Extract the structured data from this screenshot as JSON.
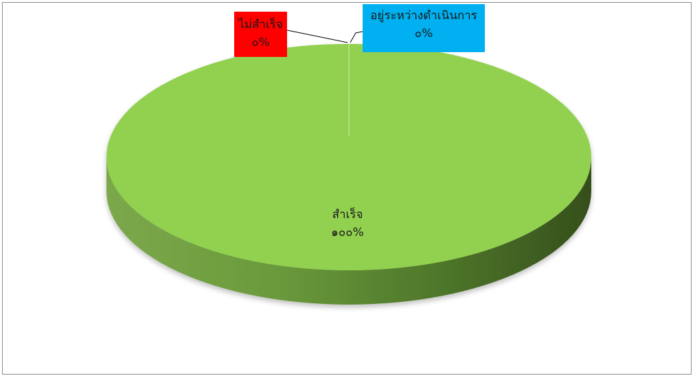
{
  "chart_data": {
    "type": "pie",
    "style": "3d",
    "categories": [
      "สำเร็จ",
      "ไม่สำเร็จ",
      "อยู่ระหว่างดำเนินการ"
    ],
    "values": [
      100,
      0,
      0
    ],
    "value_labels": [
      "๑๐๐%",
      "๐%",
      "๐%"
    ],
    "colors": [
      "#92d050",
      "#ff0000",
      "#00b0f0"
    ],
    "legend": "none",
    "title": ""
  },
  "labels": {
    "success": {
      "name": "สำเร็จ",
      "value": "๑๐๐%",
      "fill": "#92d050"
    },
    "fail": {
      "name": "ไม่สำเร็จ",
      "value": "๐%",
      "fill": "#ff0000"
    },
    "progress": {
      "name": "อยู่ระหว่างดำเนินการ",
      "value": "๐%",
      "fill": "#00b0f0"
    }
  }
}
